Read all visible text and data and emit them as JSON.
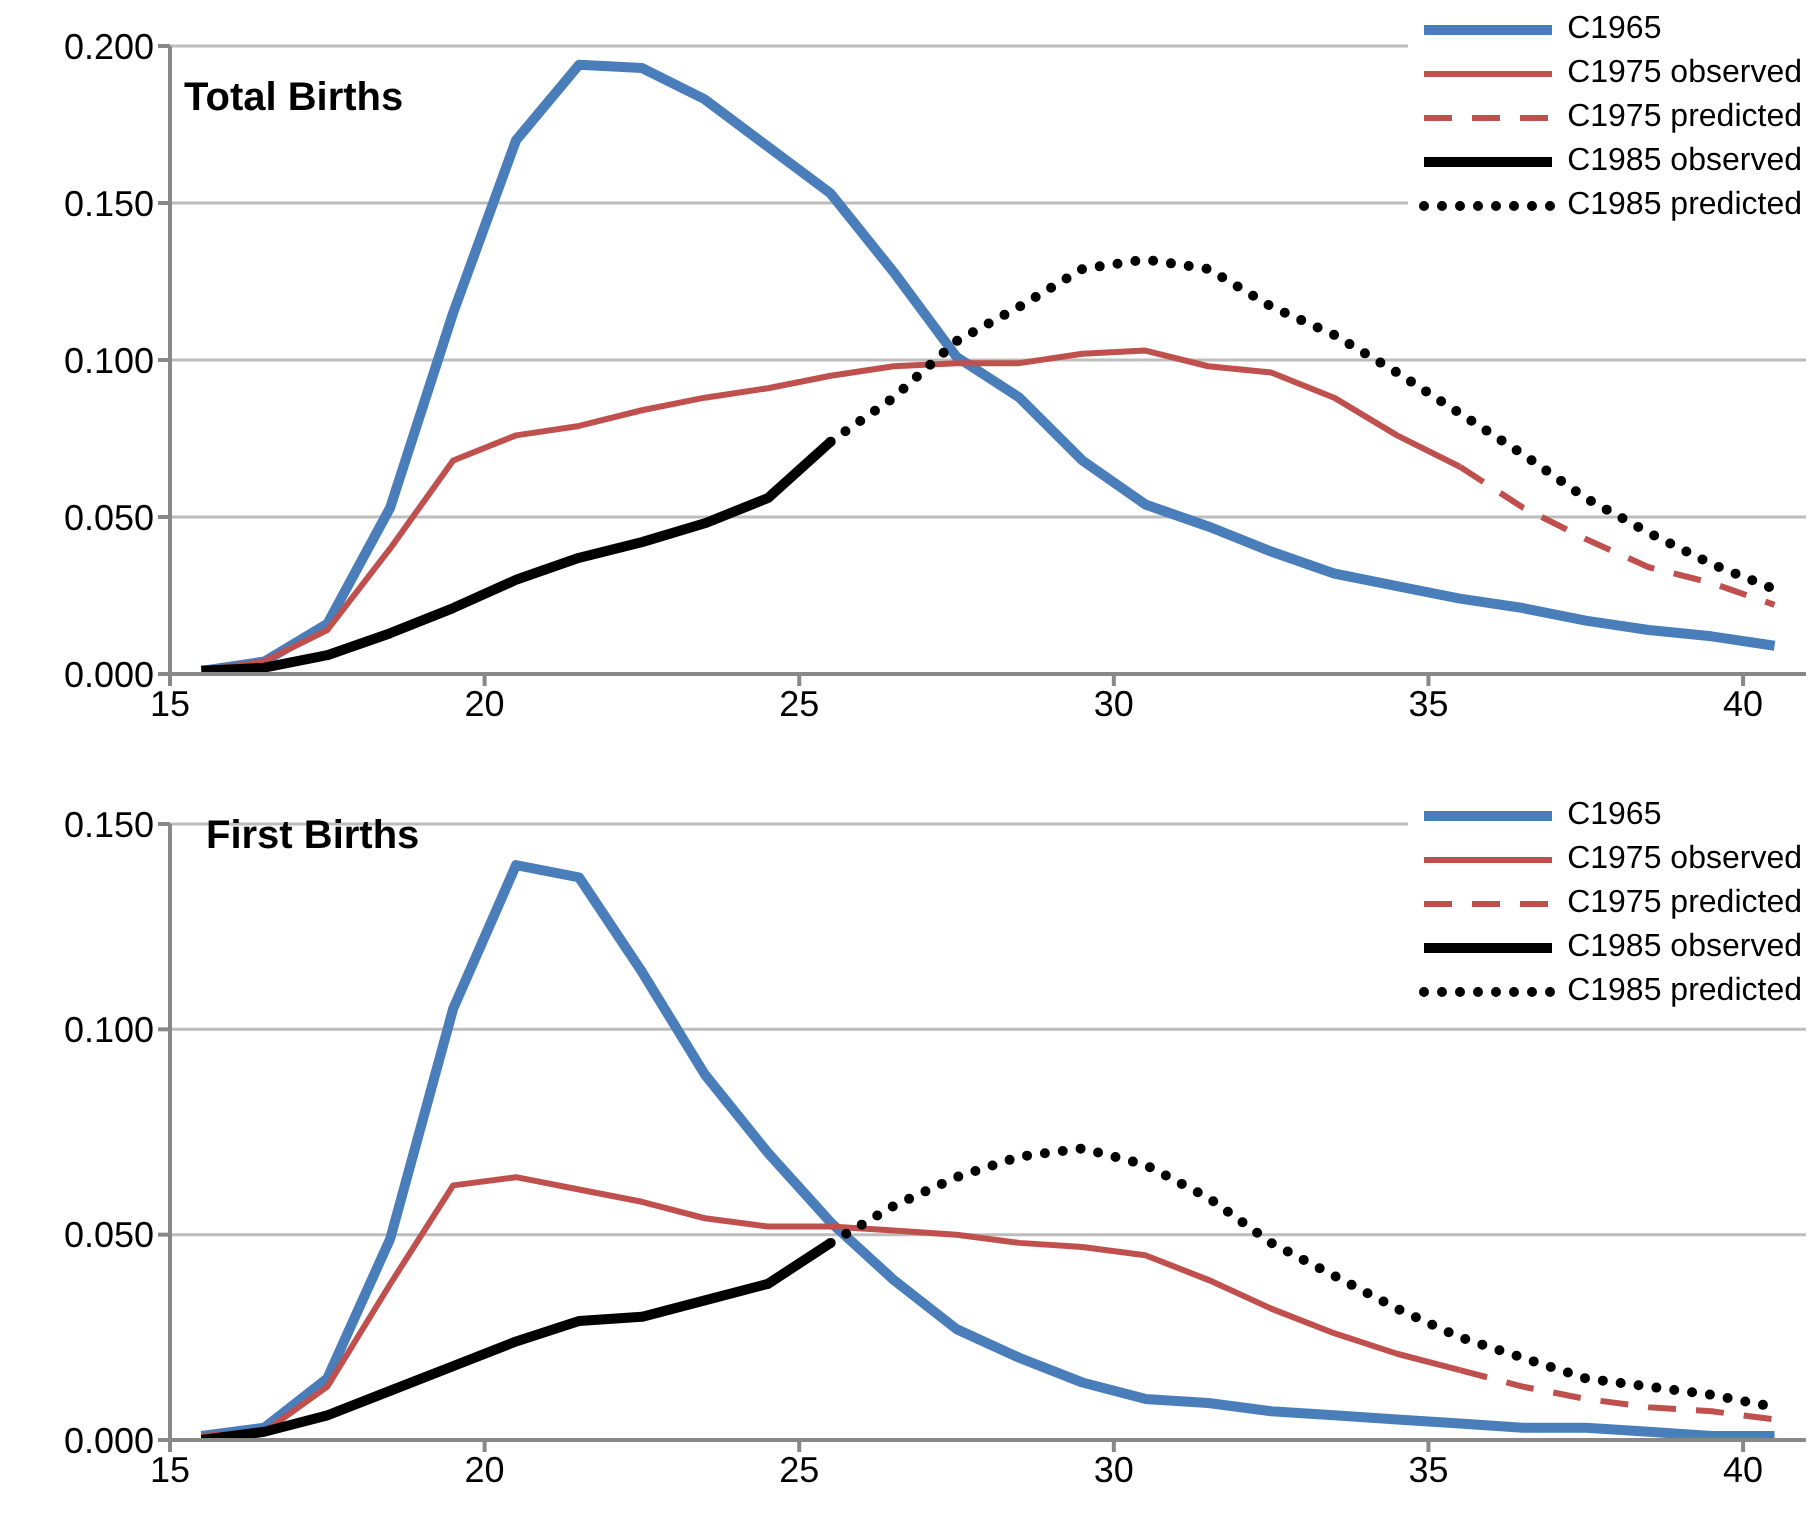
{
  "chart_data": [
    {
      "type": "line",
      "title": "Total Births",
      "xlim": [
        15,
        41
      ],
      "xticks": [
        15,
        20,
        25,
        30,
        35,
        40
      ],
      "ylim": [
        0,
        0.2
      ],
      "yticks": [
        {
          "value": 0,
          "label": "0.000"
        },
        {
          "value": 0.05,
          "label": "0.050"
        },
        {
          "value": 0.1,
          "label": "0.100"
        },
        {
          "value": 0.15,
          "label": "0.150"
        },
        {
          "value": 0.2,
          "label": "0.200"
        }
      ],
      "grid": "y",
      "legend": "top right",
      "marker": "none",
      "series": [
        {
          "name": "C1965",
          "color": "#4a7ebb",
          "line_style": "solid",
          "x": [
            15.5,
            16.5,
            17.5,
            18.5,
            19.5,
            20.5,
            21.5,
            22.5,
            23.5,
            24.5,
            25.5,
            26.5,
            27.5,
            28.5,
            29.5,
            30.5,
            31.5,
            32.5,
            33.5,
            34.5,
            35.5,
            36.5,
            37.5,
            38.5,
            39.5,
            40.5
          ],
          "values": [
            0.001,
            0.004,
            0.016,
            0.053,
            0.115,
            0.17,
            0.194,
            0.193,
            0.183,
            0.168,
            0.153,
            0.128,
            0.101,
            0.088,
            0.068,
            0.054,
            0.047,
            0.039,
            0.032,
            0.028,
            0.024,
            0.021,
            0.017,
            0.014,
            0.012,
            0.009
          ]
        },
        {
          "name": "C1975 observed",
          "color": "#c0504d",
          "line_style": "solid",
          "x": [
            15.5,
            16.5,
            17.5,
            18.5,
            19.5,
            20.5,
            21.5,
            22.5,
            23.5,
            24.5,
            25.5,
            26.5,
            27.5,
            28.5,
            29.5,
            30.5,
            31.5,
            32.5,
            33.5,
            34.5,
            35.5
          ],
          "values": [
            0.001,
            0.004,
            0.014,
            0.04,
            0.068,
            0.076,
            0.079,
            0.084,
            0.088,
            0.091,
            0.095,
            0.098,
            0.099,
            0.099,
            0.102,
            0.103,
            0.098,
            0.096,
            0.088,
            0.076,
            0.066
          ]
        },
        {
          "name": "C1975 predicted",
          "color": "#c0504d",
          "line_style": "dashed",
          "x": [
            35.5,
            36.5,
            37.5,
            38.5,
            39.5,
            40.5
          ],
          "values": [
            0.066,
            0.053,
            0.043,
            0.034,
            0.029,
            0.022
          ]
        },
        {
          "name": "C1985 observed",
          "color": "#000000",
          "line_style": "solid",
          "x": [
            15.5,
            16.5,
            17.5,
            18.5,
            19.5,
            20.5,
            21.5,
            22.5,
            23.5,
            24.5,
            25.5
          ],
          "values": [
            0.001,
            0.002,
            0.006,
            0.013,
            0.021,
            0.03,
            0.037,
            0.042,
            0.048,
            0.056,
            0.074
          ]
        },
        {
          "name": "C1985 predicted",
          "color": "#000000",
          "line_style": "dotted",
          "x": [
            25.5,
            26.5,
            27.5,
            28.5,
            29.5,
            30.5,
            31.5,
            32.5,
            33.5,
            34.5,
            35.5,
            36.5,
            37.5,
            38.5,
            39.5,
            40.5
          ],
          "values": [
            0.074,
            0.088,
            0.106,
            0.117,
            0.129,
            0.132,
            0.129,
            0.117,
            0.108,
            0.096,
            0.083,
            0.07,
            0.056,
            0.045,
            0.035,
            0.027
          ]
        }
      ]
    },
    {
      "type": "line",
      "title": "First Births",
      "xlim": [
        15,
        41
      ],
      "xticks": [
        15,
        20,
        25,
        30,
        35,
        40
      ],
      "ylim": [
        0,
        0.15
      ],
      "yticks": [
        {
          "value": 0,
          "label": "0.000"
        },
        {
          "value": 0.05,
          "label": "0.050"
        },
        {
          "value": 0.1,
          "label": "0.100"
        },
        {
          "value": 0.15,
          "label": "0.150"
        }
      ],
      "grid": "y",
      "legend": "top right",
      "marker": "none",
      "series": [
        {
          "name": "C1965",
          "color": "#4a7ebb",
          "line_style": "solid",
          "x": [
            15.5,
            16.5,
            17.5,
            18.5,
            19.5,
            20.5,
            21.5,
            22.5,
            23.5,
            24.5,
            25.5,
            26.5,
            27.5,
            28.5,
            29.5,
            30.5,
            31.5,
            32.5,
            33.5,
            34.5,
            35.5,
            36.5,
            37.5,
            38.5,
            39.5,
            40.5
          ],
          "values": [
            0.001,
            0.003,
            0.015,
            0.049,
            0.105,
            0.14,
            0.137,
            0.114,
            0.089,
            0.07,
            0.053,
            0.039,
            0.027,
            0.02,
            0.014,
            0.01,
            0.009,
            0.007,
            0.006,
            0.005,
            0.004,
            0.003,
            0.003,
            0.002,
            0.001,
            0.001
          ]
        },
        {
          "name": "C1975 observed",
          "color": "#c0504d",
          "line_style": "solid",
          "x": [
            15.5,
            16.5,
            17.5,
            18.5,
            19.5,
            20.5,
            21.5,
            22.5,
            23.5,
            24.5,
            25.5,
            26.5,
            27.5,
            28.5,
            29.5,
            30.5,
            31.5,
            32.5,
            33.5,
            34.5,
            35.5
          ],
          "values": [
            0.001,
            0.002,
            0.013,
            0.038,
            0.062,
            0.064,
            0.061,
            0.058,
            0.054,
            0.052,
            0.052,
            0.051,
            0.05,
            0.048,
            0.047,
            0.045,
            0.039,
            0.032,
            0.026,
            0.021,
            0.017
          ]
        },
        {
          "name": "C1975 predicted",
          "color": "#c0504d",
          "line_style": "dashed",
          "x": [
            35.5,
            36.5,
            37.5,
            38.5,
            39.5,
            40.5
          ],
          "values": [
            0.017,
            0.013,
            0.01,
            0.008,
            0.007,
            0.005
          ]
        },
        {
          "name": "C1985 observed",
          "color": "#000000",
          "line_style": "solid",
          "x": [
            15.5,
            16.5,
            17.5,
            18.5,
            19.5,
            20.5,
            21.5,
            22.5,
            23.5,
            24.5,
            25.5
          ],
          "values": [
            0.0,
            0.002,
            0.006,
            0.012,
            0.018,
            0.024,
            0.029,
            0.03,
            0.034,
            0.038,
            0.048
          ]
        },
        {
          "name": "C1985 predicted",
          "color": "#000000",
          "line_style": "dotted",
          "x": [
            25.5,
            26.5,
            27.5,
            28.5,
            29.5,
            30.5,
            31.5,
            32.5,
            33.5,
            34.5,
            35.5,
            36.5,
            37.5,
            38.5,
            39.5,
            40.5
          ],
          "values": [
            0.048,
            0.057,
            0.064,
            0.069,
            0.071,
            0.067,
            0.059,
            0.048,
            0.04,
            0.032,
            0.025,
            0.02,
            0.015,
            0.013,
            0.011,
            0.008
          ]
        }
      ]
    }
  ]
}
